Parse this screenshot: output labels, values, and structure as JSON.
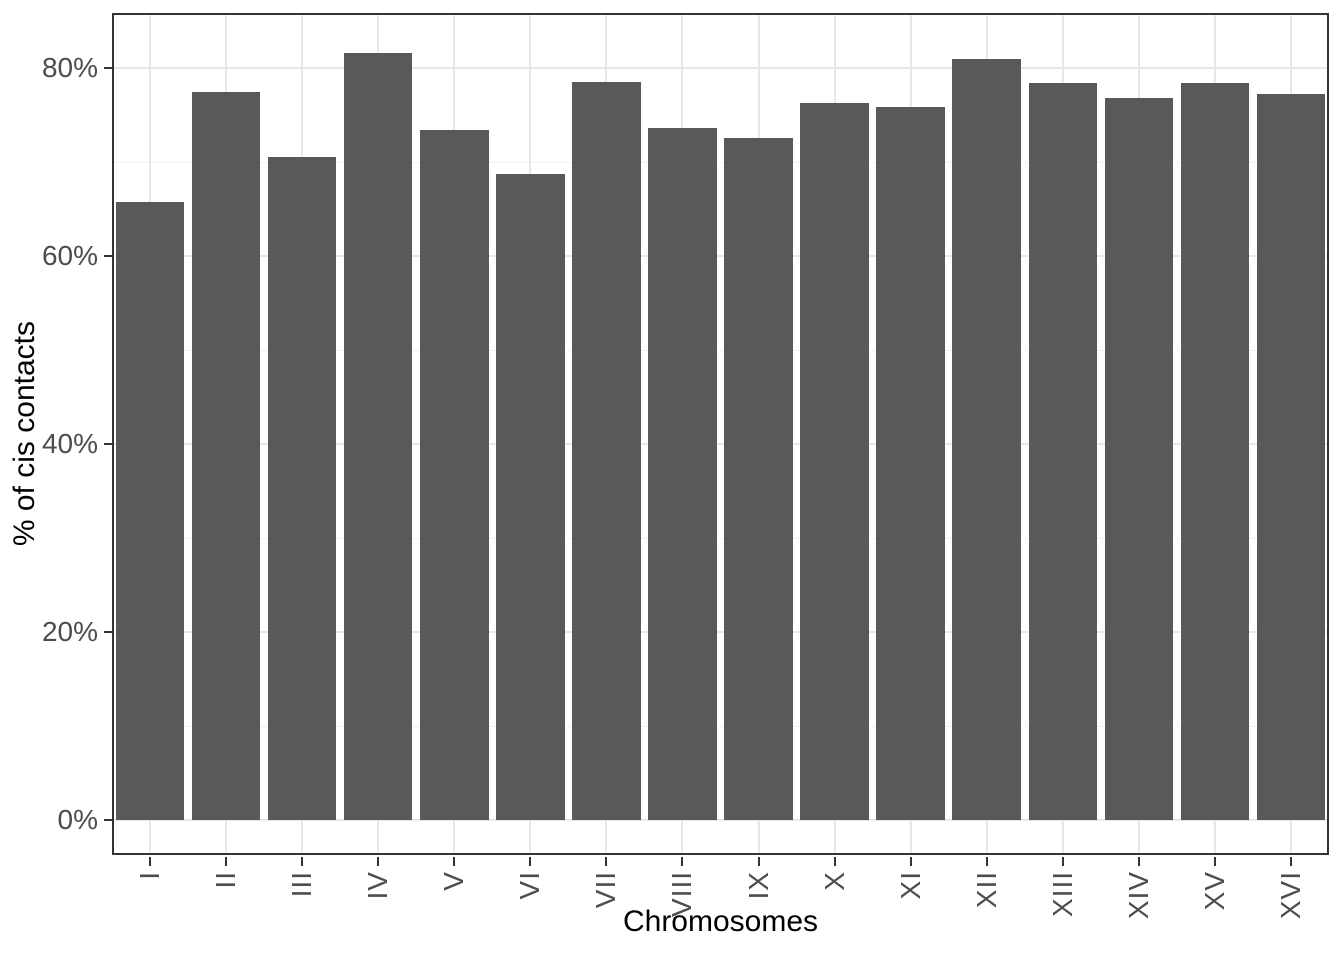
{
  "chart_data": {
    "type": "bar",
    "title": "",
    "xlabel": "Chromosomes",
    "ylabel": "% of cis contacts",
    "categories": [
      "I",
      "II",
      "III",
      "IV",
      "V",
      "VI",
      "VII",
      "VIII",
      "IX",
      "X",
      "XI",
      "XII",
      "XIII",
      "XIV",
      "XV",
      "XVI"
    ],
    "values": [
      65.8,
      77.5,
      70.6,
      81.6,
      73.4,
      68.8,
      78.5,
      73.6,
      72.6,
      76.3,
      75.9,
      81.0,
      78.4,
      76.8,
      78.4,
      77.3
    ],
    "y_ticks": [
      0,
      20,
      40,
      60,
      80
    ],
    "y_tick_labels": [
      "0%",
      "20%",
      "40%",
      "60%",
      "80%"
    ],
    "y_minor_ticks": [
      10,
      30,
      50,
      70
    ],
    "ylim": [
      -4.1,
      85.8
    ],
    "grid": "on",
    "legend": "none",
    "bar_color": "#595959",
    "grid_major_color": "#e8e8e8",
    "grid_minor_color": "#f1f1f1",
    "axis_text_color": "#4d4d4d",
    "axis_title_color": "#000000",
    "panel_border_color": "#333333"
  }
}
